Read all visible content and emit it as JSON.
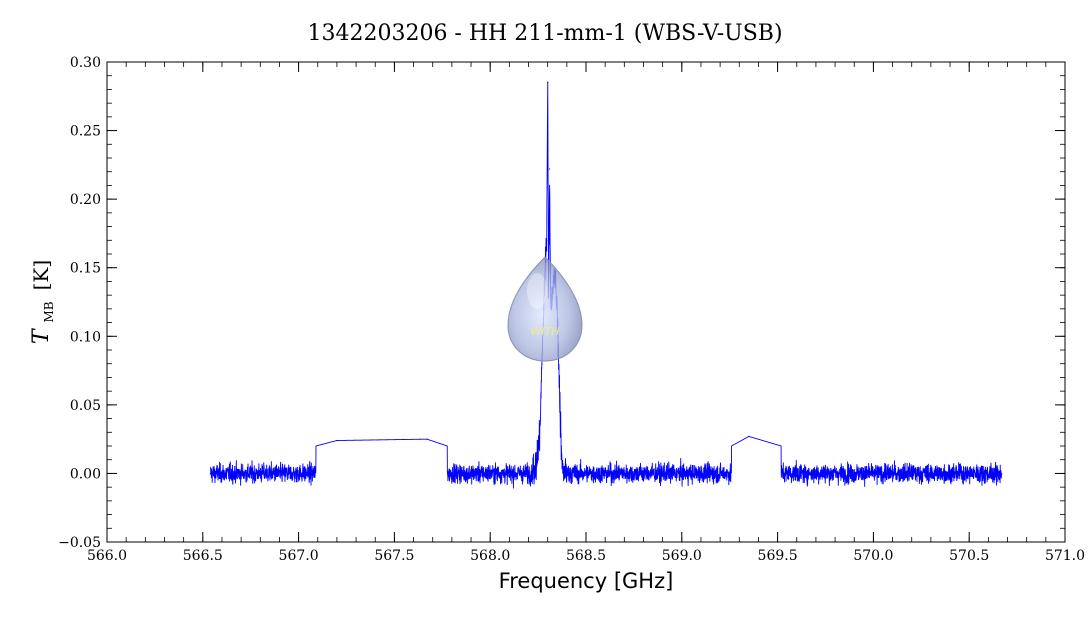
{
  "chart_data": {
    "type": "line",
    "title": "1342203206 - HH 211-mm-1 (WBS-V-USB)",
    "xlabel": "Frequency [GHz]",
    "ylabel": "T",
    "ylabel_subscript": "MB",
    "ylabel_unit": "[K]",
    "xlim": [
      566.0,
      571.0
    ],
    "ylim": [
      -0.05,
      0.3
    ],
    "x_ticks": [
      "566.0",
      "567.0",
      "567.5",
      "568.0",
      "568.5",
      "569.0",
      "569.5",
      "570.0",
      "570.5",
      "571.0"
    ],
    "x_tick_values": [
      566.0,
      567.0,
      567.5,
      568.0,
      568.5,
      569.0,
      569.5,
      570.0,
      570.5,
      571.0
    ],
    "x_ticks_all": [
      "566.0",
      "566.5",
      "567.0",
      "567.5",
      "568.0",
      "568.5",
      "569.0",
      "569.5",
      "570.0",
      "570.5",
      "571.0"
    ],
    "y_ticks": [
      "−0.05",
      "0.00",
      "0.05",
      "0.10",
      "0.15",
      "0.20",
      "0.25",
      "0.30"
    ],
    "y_tick_values": [
      -0.05,
      0.0,
      0.05,
      0.1,
      0.15,
      0.2,
      0.25,
      0.3
    ],
    "grid": false,
    "series": [
      {
        "color": "#0000ff",
        "coverage": [
          566.54,
          570.67
        ],
        "baseline": 0.0,
        "noise_rms": 0.007,
        "x": [
          566.54,
          567.2,
          567.67,
          568.2,
          568.24,
          568.26,
          568.27,
          568.28,
          568.29,
          568.295,
          568.3,
          568.305,
          568.31,
          568.315,
          568.32,
          568.33,
          568.34,
          568.35,
          568.36,
          568.37,
          568.38,
          569.0,
          569.35,
          570.0,
          570.67
        ],
        "y": [
          0.0,
          0.024,
          0.025,
          0.0,
          0.005,
          0.035,
          0.08,
          0.12,
          0.16,
          0.17,
          0.285,
          0.14,
          0.222,
          0.13,
          0.12,
          0.14,
          0.142,
          0.12,
          0.07,
          0.02,
          0.0,
          0.0,
          0.027,
          0.0,
          0.0
        ]
      }
    ]
  },
  "logo": {
    "text": "WITH"
  }
}
